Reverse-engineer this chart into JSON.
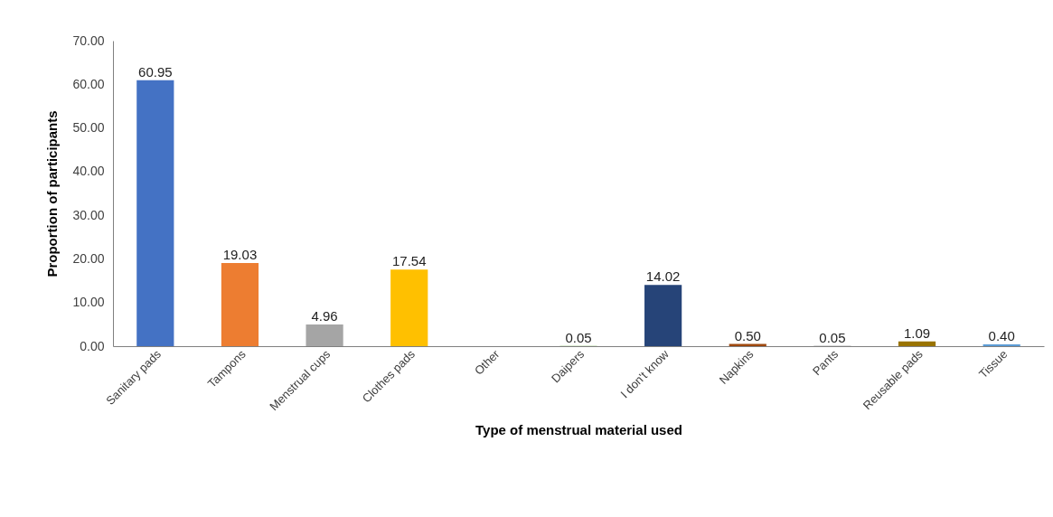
{
  "chart_data": {
    "type": "bar",
    "xlabel": "Type of menstrual material used",
    "ylabel": "Proportion of participants",
    "categories": [
      "Sanitary pads",
      "Tampons",
      "Menstrual cups",
      "Clothes pads",
      "Other",
      "Daipers",
      "I don't know",
      "Napkins",
      "Pants",
      "Reusable pads",
      "Tissue"
    ],
    "values": [
      60.95,
      19.03,
      4.96,
      17.54,
      null,
      0.05,
      14.02,
      0.5,
      0.05,
      1.09,
      0.4
    ],
    "value_labels": [
      "60.95",
      "19.03",
      "4.96",
      "17.54",
      null,
      "0.05",
      "14.02",
      "0.50",
      "0.05",
      "1.09",
      "0.40"
    ],
    "colors": [
      "#4472c4",
      "#ed7d31",
      "#a5a5a5",
      "#ffc000",
      "#5b9bd5",
      "#70ad47",
      "#264478",
      "#9e480e",
      "#636363",
      "#997300",
      "#5b9bd5"
    ],
    "ylim": [
      0,
      70
    ],
    "yticks": [
      {
        "value": 0,
        "label": "0.00"
      },
      {
        "value": 10,
        "label": "10.00"
      },
      {
        "value": 20,
        "label": "20.00"
      },
      {
        "value": 30,
        "label": "30.00"
      },
      {
        "value": 40,
        "label": "40.00"
      },
      {
        "value": 50,
        "label": "50.00"
      },
      {
        "value": 60,
        "label": "60.00"
      },
      {
        "value": 70,
        "label": "70.00"
      }
    ],
    "grid": false,
    "legend": false
  }
}
